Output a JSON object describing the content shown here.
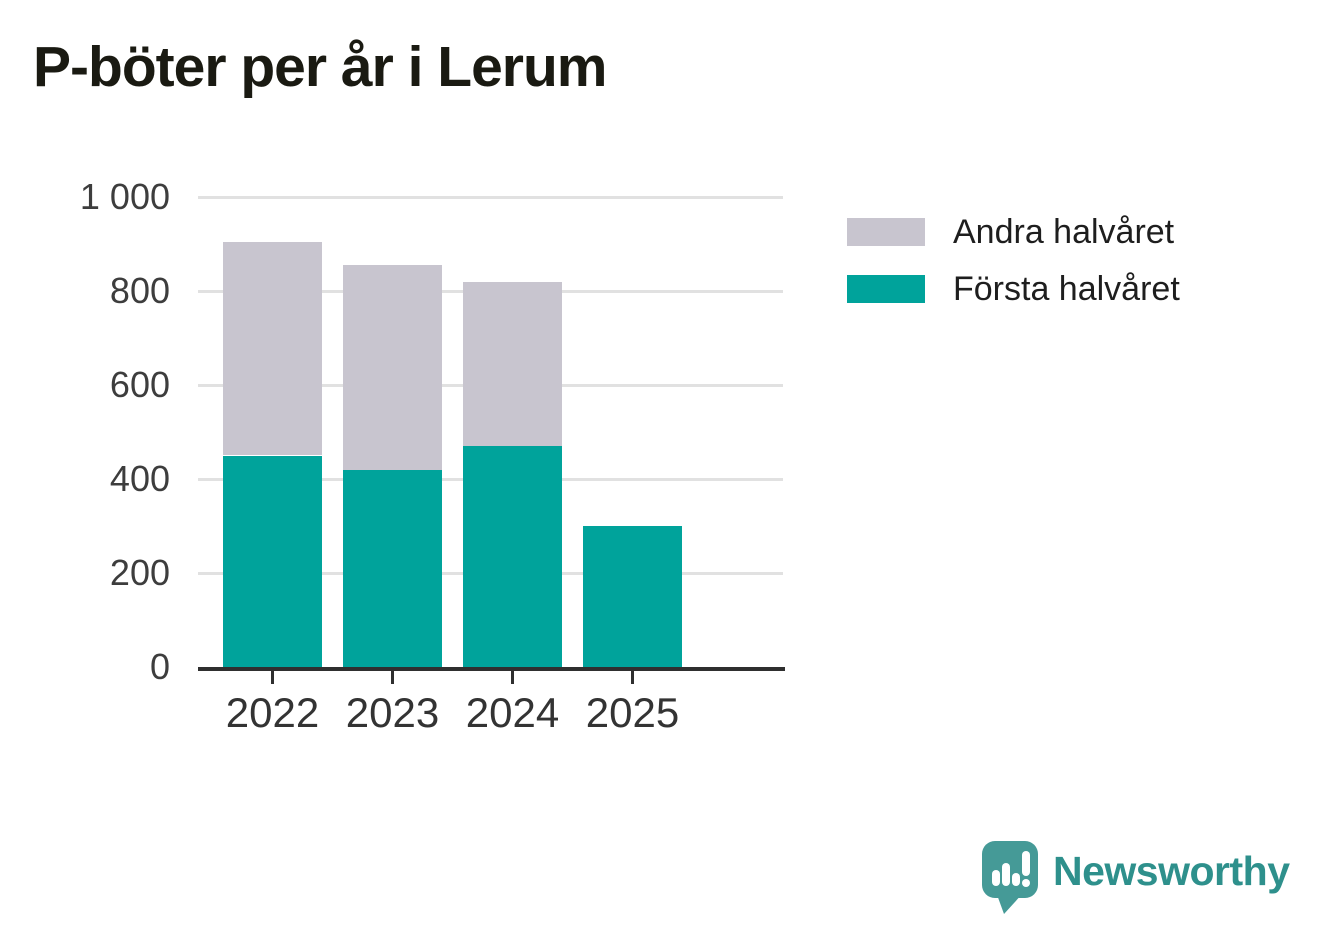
{
  "title": "P-böter per år i Lerum",
  "colors": {
    "first_half": "#00a39b",
    "second_half": "#c8c5cf",
    "axis": "#2f2f2f",
    "gridline": "#e1e1e1",
    "y_label": "#3d3d3d",
    "x_label": "#333333",
    "legend_text": "#1e1e1e",
    "brand_teal": "#2e908c",
    "brand_bubble": "#459a97"
  },
  "chart_data": {
    "type": "bar",
    "stacked": true,
    "title": "P-böter per år i Lerum",
    "categories": [
      "2022",
      "2023",
      "2024",
      "2025"
    ],
    "series": [
      {
        "name": "Första halvåret",
        "color_key": "first_half",
        "values": [
          450,
          420,
          470,
          300
        ]
      },
      {
        "name": "Andra halvåret",
        "color_key": "second_half",
        "values": [
          455,
          435,
          350,
          0
        ]
      }
    ],
    "xlabel": "",
    "ylabel": "",
    "ylim": [
      0,
      1000
    ],
    "yticks": [
      {
        "value": 1000,
        "label": "1 000"
      },
      {
        "value": 800,
        "label": "800"
      },
      {
        "value": 600,
        "label": "600"
      },
      {
        "value": 400,
        "label": "400"
      },
      {
        "value": 200,
        "label": "200"
      },
      {
        "value": 0,
        "label": "0"
      }
    ],
    "grid": true,
    "legend_position": "right"
  },
  "legend": {
    "items": [
      {
        "label": "Andra halvåret",
        "color_key": "second_half"
      },
      {
        "label": "Första halvåret",
        "color_key": "first_half"
      }
    ]
  },
  "brand": {
    "wordmark": "Newsworthy"
  }
}
